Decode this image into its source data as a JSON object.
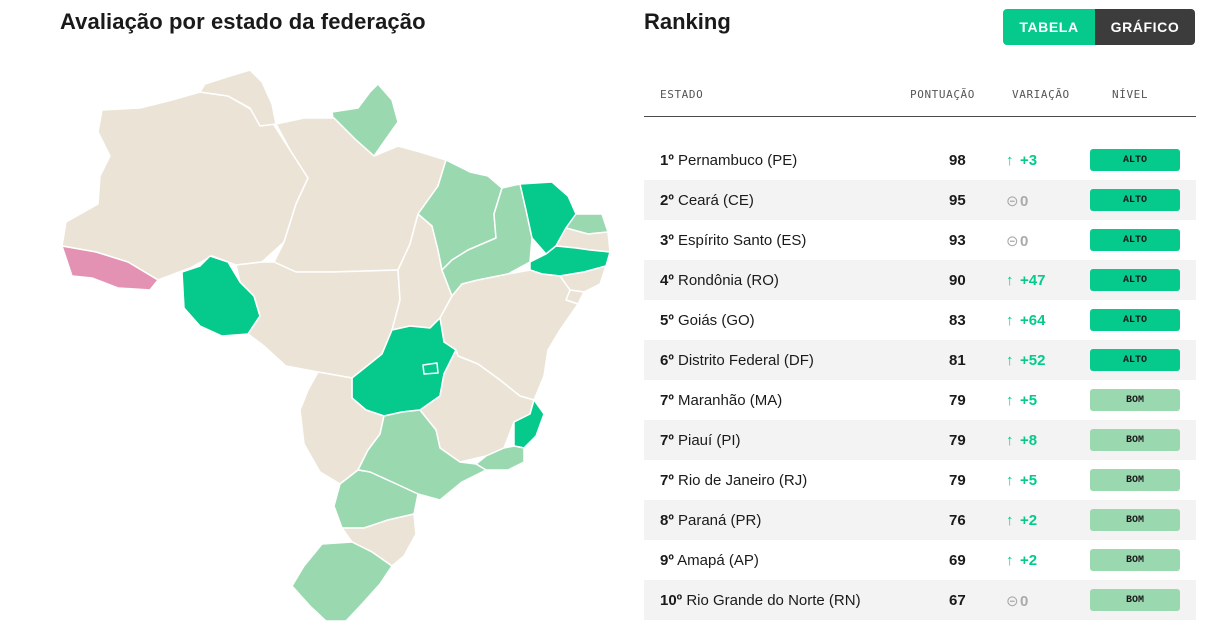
{
  "map": {
    "title": "Avaliação por estado da federação",
    "colors": {
      "alto": "#06c98c",
      "bom": "#9ad8b0",
      "baixo": "#e392b4",
      "sem_dado": "#ebe4d6",
      "border": "#ffffff"
    },
    "states": [
      {
        "code": "AM",
        "status": "sem_dado"
      },
      {
        "code": "RR",
        "status": "sem_dado"
      },
      {
        "code": "AP",
        "status": "bom"
      },
      {
        "code": "PA",
        "status": "sem_dado"
      },
      {
        "code": "AC",
        "status": "baixo"
      },
      {
        "code": "RO",
        "status": "alto"
      },
      {
        "code": "MT",
        "status": "sem_dado"
      },
      {
        "code": "TO",
        "status": "sem_dado"
      },
      {
        "code": "MA",
        "status": "bom"
      },
      {
        "code": "PI",
        "status": "bom"
      },
      {
        "code": "CE",
        "status": "alto"
      },
      {
        "code": "RN",
        "status": "bom"
      },
      {
        "code": "PB",
        "status": "sem_dado"
      },
      {
        "code": "PE",
        "status": "alto"
      },
      {
        "code": "AL",
        "status": "sem_dado"
      },
      {
        "code": "SE",
        "status": "sem_dado"
      },
      {
        "code": "BA",
        "status": "sem_dado"
      },
      {
        "code": "GO",
        "status": "alto"
      },
      {
        "code": "DF",
        "status": "alto"
      },
      {
        "code": "MG",
        "status": "sem_dado"
      },
      {
        "code": "ES",
        "status": "alto"
      },
      {
        "code": "RJ",
        "status": "bom"
      },
      {
        "code": "MS",
        "status": "sem_dado"
      },
      {
        "code": "SP",
        "status": "bom"
      },
      {
        "code": "PR",
        "status": "bom"
      },
      {
        "code": "SC",
        "status": "sem_dado"
      },
      {
        "code": "RS",
        "status": "bom"
      }
    ]
  },
  "ranking": {
    "title": "Ranking",
    "tabs": {
      "tabela": "TABELA",
      "grafico": "GRÁFICO"
    },
    "headers": {
      "estado": "ESTADO",
      "pontuacao": "PONTUAÇÃO",
      "variacao": "VARIAÇÃO",
      "nivel": "NÍVEL"
    },
    "levels": {
      "alto": {
        "label": "ALTO",
        "color": "#06c98c"
      },
      "bom": {
        "label": "BOM",
        "color": "#9ad8b0"
      }
    },
    "icons": {
      "up": "arrow-up-icon",
      "neutral": "neutral-circle-icon"
    },
    "rows": [
      {
        "pos": "1º",
        "name": "Pernambuco (PE)",
        "score": "98",
        "trend": "up",
        "change": "+3",
        "level": "alto"
      },
      {
        "pos": "2º",
        "name": "Ceará (CE)",
        "score": "95",
        "trend": "neutral",
        "change": "0",
        "level": "alto"
      },
      {
        "pos": "3º",
        "name": "Espírito Santo (ES)",
        "score": "93",
        "trend": "neutral",
        "change": "0",
        "level": "alto"
      },
      {
        "pos": "4º",
        "name": "Rondônia (RO)",
        "score": "90",
        "trend": "up",
        "change": "+47",
        "level": "alto"
      },
      {
        "pos": "5º",
        "name": "Goiás (GO)",
        "score": "83",
        "trend": "up",
        "change": "+64",
        "level": "alto"
      },
      {
        "pos": "6º",
        "name": "Distrito Federal (DF)",
        "score": "81",
        "trend": "up",
        "change": "+52",
        "level": "alto"
      },
      {
        "pos": "7º",
        "name": "Maranhão (MA)",
        "score": "79",
        "trend": "up",
        "change": "+5",
        "level": "bom"
      },
      {
        "pos": "7º",
        "name": "Piauí (PI)",
        "score": "79",
        "trend": "up",
        "change": "+8",
        "level": "bom"
      },
      {
        "pos": "7º",
        "name": "Rio de Janeiro (RJ)",
        "score": "79",
        "trend": "up",
        "change": "+5",
        "level": "bom"
      },
      {
        "pos": "8º",
        "name": "Paraná (PR)",
        "score": "76",
        "trend": "up",
        "change": "+2",
        "level": "bom"
      },
      {
        "pos": "9º",
        "name": "Amapá (AP)",
        "score": "69",
        "trend": "up",
        "change": "+2",
        "level": "bom"
      },
      {
        "pos": "10º",
        "name": "Rio Grande do Norte (RN)",
        "score": "67",
        "trend": "neutral",
        "change": "0",
        "level": "bom"
      }
    ]
  }
}
